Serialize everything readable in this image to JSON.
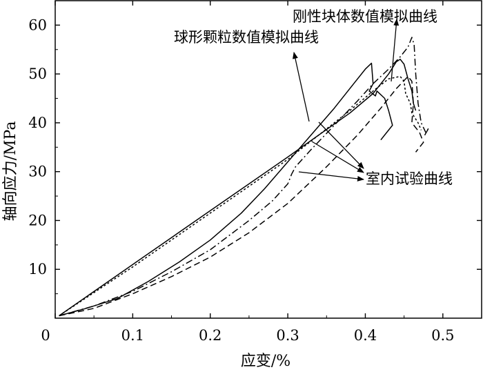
{
  "chart_data": {
    "type": "line",
    "xlabel": "应变/%",
    "ylabel": "轴向应力/MPa",
    "xlim": [
      0,
      0.55
    ],
    "ylim": [
      0,
      65
    ],
    "xticks": [
      0,
      0.1,
      0.2,
      0.3,
      0.4,
      0.5
    ],
    "xtick_labels": [
      "0",
      "0.1",
      "0.2",
      "0.3",
      "0.4",
      "0.5"
    ],
    "yticks": [
      10,
      20,
      30,
      40,
      50,
      60
    ],
    "ytick_labels": [
      "10",
      "20",
      "30",
      "40",
      "50",
      "60"
    ],
    "grid": false,
    "series": [
      {
        "style": "solid",
        "points": [
          [
            0.005,
            0.5
          ],
          [
            0.04,
            2
          ],
          [
            0.08,
            4
          ],
          [
            0.12,
            7.5
          ],
          [
            0.16,
            11.5
          ],
          [
            0.2,
            16
          ],
          [
            0.24,
            21.5
          ],
          [
            0.27,
            26.5
          ],
          [
            0.3,
            32
          ],
          [
            0.33,
            37.5
          ],
          [
            0.36,
            43
          ],
          [
            0.385,
            48
          ],
          [
            0.4,
            51
          ],
          [
            0.408,
            52.2
          ],
          [
            0.41,
            48
          ],
          [
            0.405,
            46.5
          ],
          [
            0.413,
            45.5
          ],
          [
            0.415,
            46.5
          ],
          [
            0.425,
            45
          ],
          [
            0.43,
            42.5
          ],
          [
            0.435,
            39.5
          ],
          [
            0.425,
            37.5
          ],
          [
            0.42,
            36.5
          ]
        ]
      },
      {
        "style": "dashed",
        "points": [
          [
            0.005,
            0.5
          ],
          [
            0.05,
            2
          ],
          [
            0.1,
            5
          ],
          [
            0.15,
            8.5
          ],
          [
            0.2,
            12.5
          ],
          [
            0.25,
            17.5
          ],
          [
            0.3,
            23.5
          ],
          [
            0.35,
            31
          ],
          [
            0.39,
            37.5
          ],
          [
            0.42,
            43
          ],
          [
            0.44,
            47
          ],
          [
            0.455,
            49.5
          ],
          [
            0.46,
            48.5
          ],
          [
            0.462,
            44
          ],
          [
            0.46,
            40
          ],
          [
            0.47,
            38
          ],
          [
            0.475,
            36
          ],
          [
            0.465,
            34
          ]
        ]
      },
      {
        "style": "dashdot",
        "points": [
          [
            0.005,
            0.5
          ],
          [
            0.05,
            2.5
          ],
          [
            0.1,
            5.5
          ],
          [
            0.15,
            9.5
          ],
          [
            0.2,
            14
          ],
          [
            0.25,
            20
          ],
          [
            0.28,
            24
          ],
          [
            0.3,
            27.5
          ],
          [
            0.305,
            29.5
          ],
          [
            0.31,
            31
          ],
          [
            0.33,
            34.5
          ],
          [
            0.36,
            39.5
          ],
          [
            0.39,
            44.5
          ],
          [
            0.41,
            48
          ],
          [
            0.43,
            51
          ],
          [
            0.445,
            53.5
          ],
          [
            0.455,
            55.5
          ],
          [
            0.46,
            57.5
          ],
          [
            0.463,
            56
          ],
          [
            0.465,
            50
          ],
          [
            0.468,
            44
          ],
          [
            0.472,
            40
          ],
          [
            0.478,
            38
          ],
          [
            0.482,
            39
          ],
          [
            0.475,
            37
          ]
        ]
      },
      {
        "style": "short-dash",
        "points": [
          [
            0.005,
            0.5
          ],
          [
            0.1,
            10.5
          ],
          [
            0.2,
            21.5
          ],
          [
            0.3,
            32.5
          ],
          [
            0.34,
            37.5
          ],
          [
            0.38,
            42.5
          ],
          [
            0.41,
            46.5
          ],
          [
            0.43,
            49
          ],
          [
            0.445,
            49.5
          ],
          [
            0.45,
            48.5
          ],
          [
            0.452,
            46
          ],
          [
            0.458,
            44
          ],
          [
            0.46,
            42
          ],
          [
            0.468,
            40
          ],
          [
            0.472,
            38.5
          ]
        ]
      },
      {
        "style": "solid",
        "points": [
          [
            0.005,
            0.5
          ],
          [
            0.1,
            11
          ],
          [
            0.2,
            22
          ],
          [
            0.3,
            33
          ],
          [
            0.34,
            37.5
          ],
          [
            0.38,
            42
          ],
          [
            0.41,
            46
          ],
          [
            0.43,
            50
          ],
          [
            0.44,
            52.5
          ],
          [
            0.445,
            53
          ],
          [
            0.45,
            52
          ],
          [
            0.455,
            49
          ],
          [
            0.46,
            46.5
          ],
          [
            0.462,
            44
          ],
          [
            0.465,
            42.5
          ]
        ]
      }
    ],
    "annotations": [
      {
        "text": "刚性块体数值模拟曲线",
        "target": "solid loading curve near peak"
      },
      {
        "text": "球形颗粒数值模拟曲线",
        "target": "upper near-linear curves"
      },
      {
        "text": "室内试验曲线",
        "target": "laboratory test curves"
      }
    ]
  }
}
